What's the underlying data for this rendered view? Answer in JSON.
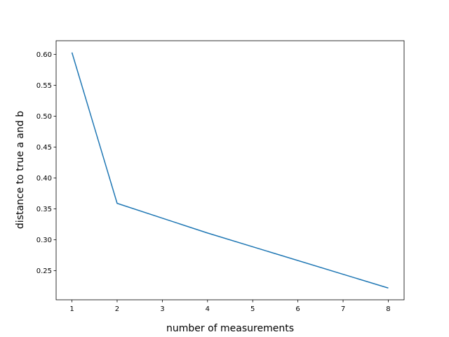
{
  "chart_data": {
    "type": "line",
    "x_label": "number of measurements",
    "y_label": "distance to true a and b",
    "x": [
      1,
      2,
      4,
      8
    ],
    "series": [
      {
        "color": "#1f77b4",
        "values": [
          0.603,
          0.359,
          0.311,
          0.222
        ]
      }
    ],
    "xlim": [
      0.65,
      8.35
    ],
    "xticks": [
      1,
      2,
      3,
      4,
      5,
      6,
      7,
      8
    ],
    "ylim": [
      0.203,
      0.622
    ],
    "yticks": [
      {
        "value": 0.25,
        "label": "0.25"
      },
      {
        "value": 0.3,
        "label": "0.30"
      },
      {
        "value": 0.35,
        "label": "0.35"
      },
      {
        "value": 0.4,
        "label": "0.40"
      },
      {
        "value": 0.45,
        "label": "0.45"
      },
      {
        "value": 0.5,
        "label": "0.50"
      },
      {
        "value": 0.55,
        "label": "0.55"
      },
      {
        "value": 0.6,
        "label": "0.60"
      }
    ]
  }
}
